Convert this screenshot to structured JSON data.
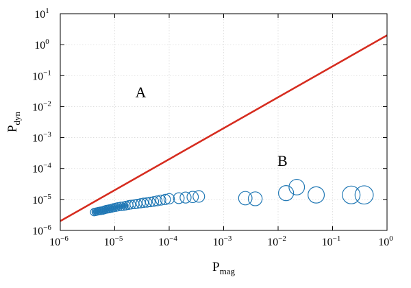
{
  "chart_data": {
    "type": "scatter",
    "title": "",
    "xlabel": {
      "main": "P",
      "sub": "mag"
    },
    "ylabel": {
      "main": "P",
      "sub": "dyn"
    },
    "x_scale": "log",
    "y_scale": "log",
    "xlim": [
      1e-06,
      1
    ],
    "ylim": [
      1e-06,
      10
    ],
    "grid": true,
    "x_ticks": [
      {
        "value": 1e-06,
        "base": "10",
        "exp": "−6"
      },
      {
        "value": 1e-05,
        "base": "10",
        "exp": "−5"
      },
      {
        "value": 0.0001,
        "base": "10",
        "exp": "−4"
      },
      {
        "value": 0.001,
        "base": "10",
        "exp": "−3"
      },
      {
        "value": 0.01,
        "base": "10",
        "exp": "−2"
      },
      {
        "value": 0.1,
        "base": "10",
        "exp": "−1"
      },
      {
        "value": 1,
        "base": "10",
        "exp": "0"
      }
    ],
    "y_ticks": [
      {
        "value": 1e-06,
        "base": "10",
        "exp": "−6"
      },
      {
        "value": 1e-05,
        "base": "10",
        "exp": "−5"
      },
      {
        "value": 0.0001,
        "base": "10",
        "exp": "−4"
      },
      {
        "value": 0.001,
        "base": "10",
        "exp": "−3"
      },
      {
        "value": 0.01,
        "base": "10",
        "exp": "−2"
      },
      {
        "value": 0.1,
        "base": "10",
        "exp": "−1"
      },
      {
        "value": 1,
        "base": "10",
        "exp": "0"
      },
      {
        "value": 10,
        "base": "10",
        "exp": "1"
      }
    ],
    "boundary_line": {
      "color": "#d62c1f",
      "points": [
        [
          1e-06,
          2e-06
        ],
        [
          1,
          2
        ]
      ]
    },
    "regions": [
      {
        "label": "A",
        "x": 3e-05,
        "y": 0.02
      },
      {
        "label": "B",
        "x": 0.012,
        "y": 0.00012
      }
    ],
    "marker_color": "#1f77b4",
    "series": [
      {
        "points": [
          [
            4.2e-06,
            3.9e-06
          ],
          [
            4.5e-06,
            4e-06
          ],
          [
            4.8e-06,
            4.1e-06
          ],
          [
            5.1e-06,
            4.2e-06
          ],
          [
            5.5e-06,
            4.3e-06
          ],
          [
            6e-06,
            4.4e-06
          ],
          [
            6.5e-06,
            4.6e-06
          ],
          [
            7e-06,
            4.8e-06
          ],
          [
            7.5e-06,
            4.9e-06
          ],
          [
            8e-06,
            5e-06
          ],
          [
            8.8e-06,
            5.2e-06
          ],
          [
            9.5e-06,
            5.4e-06
          ],
          [
            1.05e-05,
            5.6e-06
          ],
          [
            1.15e-05,
            5.8e-06
          ],
          [
            1.3e-05,
            6e-06
          ],
          [
            1.45e-05,
            6.1e-06
          ],
          [
            1.6e-05,
            6.3e-06
          ],
          [
            1.8e-05,
            6.6e-06
          ],
          [
            2e-05,
            6.8e-06
          ],
          [
            2.3e-05,
            7e-06
          ],
          [
            2.6e-05,
            7.2e-06
          ],
          [
            3e-05,
            7.5e-06
          ],
          [
            3.4e-05,
            7.8e-06
          ],
          [
            3.9e-05,
            8e-06
          ],
          [
            4.5e-05,
            8.3e-06
          ],
          [
            5.2e-05,
            8.6e-06
          ],
          [
            6e-05,
            9e-06
          ],
          [
            7e-05,
            9.5e-06
          ],
          [
            8.5e-05,
            1e-05
          ],
          [
            0.0001,
            1.05e-05
          ],
          [
            0.00015,
            1.1e-05
          ],
          [
            0.0002,
            1.15e-05
          ],
          [
            0.00027,
            1.2e-05
          ],
          [
            0.00035,
            1.25e-05
          ],
          [
            0.0025,
            1.1e-05
          ],
          [
            0.0038,
            1.05e-05
          ],
          [
            0.014,
            1.6e-05
          ],
          [
            0.022,
            2.5e-05
          ],
          [
            0.05,
            1.4e-05
          ],
          [
            0.22,
            1.4e-05
          ],
          [
            0.38,
            1.4e-05
          ]
        ]
      }
    ]
  }
}
